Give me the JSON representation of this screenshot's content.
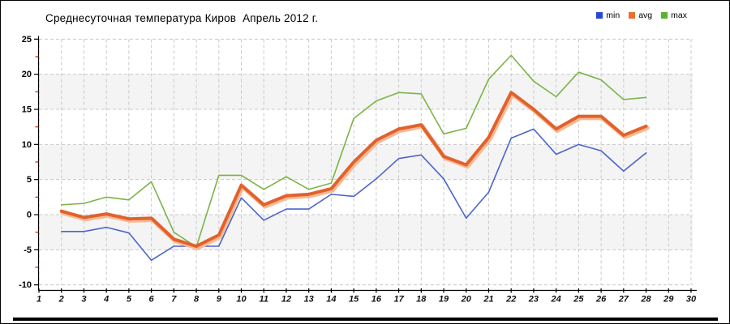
{
  "title": "Среднесуточная температура Киров  Апрель 2012 г.",
  "legend": {
    "position": "top-right",
    "items": [
      {
        "label": "min",
        "color": "#2a46d4"
      },
      {
        "label": "avg",
        "color": "#ee6c2d"
      },
      {
        "label": "max",
        "color": "#5cb22e"
      }
    ]
  },
  "chart_data": {
    "type": "line",
    "title": "Среднесуточная температура Киров  Апрель 2012 г.",
    "xlabel": "",
    "ylabel": "",
    "x": [
      2,
      3,
      4,
      5,
      6,
      7,
      8,
      9,
      10,
      11,
      12,
      13,
      14,
      15,
      16,
      17,
      18,
      19,
      20,
      21,
      22,
      23,
      24,
      25,
      26,
      27,
      28
    ],
    "series": [
      {
        "name": "min",
        "color": "#4a65ce",
        "width": 1.6,
        "values": [
          -2.4,
          -2.4,
          -1.8,
          -2.6,
          -6.5,
          -4.5,
          -4.5,
          -4.5,
          2.4,
          -0.8,
          0.8,
          0.8,
          2.9,
          2.6,
          5.1,
          8.0,
          8.5,
          5.1,
          -0.5,
          3.2,
          10.9,
          12.2,
          8.6,
          10.0,
          9.1,
          6.2,
          8.8
        ]
      },
      {
        "name": "avg",
        "color": "#e2612c",
        "halo": "#f5bb95",
        "width": 4,
        "values": [
          0.5,
          -0.4,
          0.1,
          -0.6,
          -0.5,
          -3.5,
          -4.5,
          -2.9,
          4.2,
          1.4,
          2.7,
          2.9,
          3.7,
          7.5,
          10.6,
          12.2,
          12.8,
          8.3,
          7.1,
          11.0,
          17.4,
          15.0,
          12.2,
          14.0,
          14.0,
          11.3,
          12.6
        ]
      },
      {
        "name": "max",
        "color": "#7ab446",
        "width": 1.6,
        "values": [
          1.4,
          1.6,
          2.5,
          2.1,
          4.7,
          -2.5,
          -4.6,
          5.6,
          5.6,
          3.6,
          5.4,
          3.6,
          4.5,
          13.7,
          16.2,
          17.4,
          17.2,
          11.5,
          12.3,
          19.3,
          22.7,
          19.0,
          16.8,
          20.3,
          19.2,
          16.4,
          16.7
        ]
      }
    ],
    "xlim": [
      1,
      30
    ],
    "ylim": [
      -10,
      25
    ],
    "xtick_step": 1,
    "ytick_step": 5,
    "ytick_minor_step": 2.5,
    "xtick_labels": [
      "1",
      "2",
      "3",
      "4",
      "5",
      "6",
      "7",
      "8",
      "9",
      "10",
      "11",
      "12",
      "13",
      "14",
      "15",
      "16",
      "17",
      "18",
      "19",
      "20",
      "21",
      "22",
      "23",
      "24",
      "25",
      "26",
      "27",
      "28",
      "29",
      "30"
    ],
    "ytick_labels": [
      "25",
      "20",
      "15",
      "10",
      "5",
      "0",
      "-5",
      "-10"
    ],
    "grid": "dashed",
    "grid_color": "#c9c9c9",
    "band_color": "#f4f4f4",
    "axis_color": "#000000",
    "minor_tick_color": "#cc2200",
    "legend_entries": [
      "min",
      "avg",
      "max"
    ]
  }
}
